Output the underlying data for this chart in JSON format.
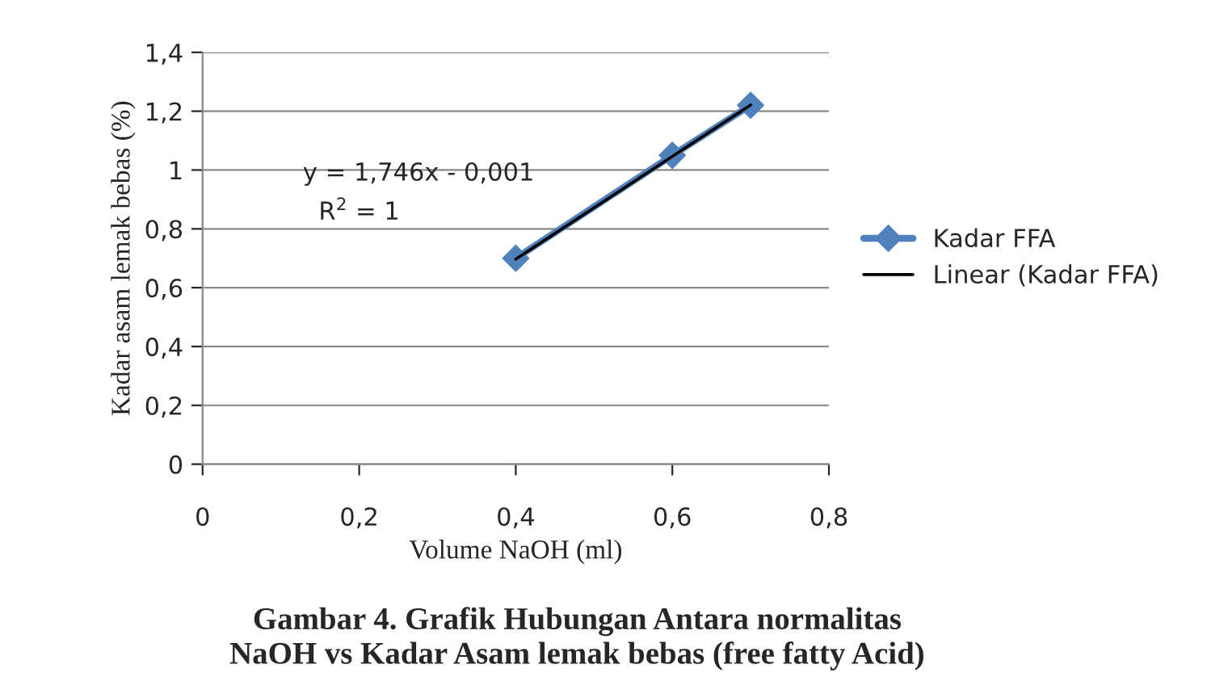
{
  "chart_data": {
    "type": "line",
    "title": "Gambar 4. Grafik Hubungan Antara normalitas\nNaOH vs Kadar Asam lemak bebas (free fatty Acid)",
    "xlabel": "Volume NaOH (ml)",
    "ylabel": "Kadar asam lemak bebas (%)",
    "x": [
      0.4,
      0.6,
      0.7
    ],
    "series": [
      {
        "name": "Kadar FFA",
        "color": "#4f81bd",
        "values": [
          0.7,
          1.05,
          1.22
        ],
        "marker": "diamond",
        "line_style": "solid"
      },
      {
        "name": "Linear (Kadar FFA)",
        "type": "line",
        "color": "#000000",
        "x": [
          0.4,
          0.7
        ],
        "values": [
          0.697,
          1.221
        ],
        "marker": "none",
        "line_style": "solid"
      }
    ],
    "annotations": [
      "y = 1,746x - 0,001",
      "R$^{2}$ = 1"
    ],
    "xlim": [
      0,
      0.8
    ],
    "ylim": [
      0,
      1.4
    ],
    "xticks": [
      0,
      {
        "value": 0.2,
        "label": "0,2"
      },
      {
        "value": 0.4,
        "label": "0,4"
      },
      {
        "value": 0.6,
        "label": "0,6"
      },
      {
        "value": 0.8,
        "label": "0,8"
      }
    ],
    "yticks": [
      0,
      {
        "value": 0.2,
        "label": "0,2"
      },
      {
        "value": 0.4,
        "label": "0,4"
      },
      {
        "value": 0.6,
        "label": "0,6"
      },
      {
        "value": 0.8,
        "label": "0,8"
      },
      1,
      {
        "value": 1.2,
        "label": "1,2"
      },
      {
        "value": 1.4,
        "label": "1,4"
      }
    ],
    "grid": "y",
    "legend": "right"
  }
}
